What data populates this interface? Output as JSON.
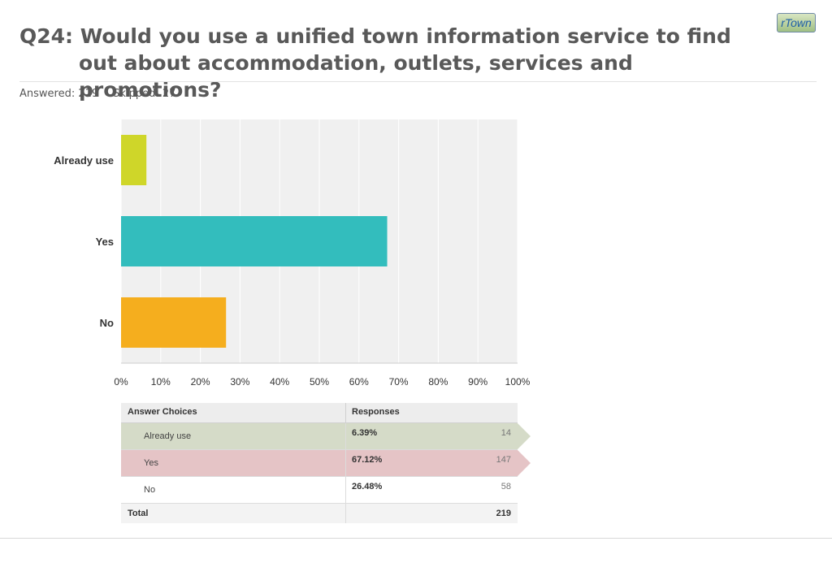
{
  "header": {
    "title": "Q24: Would you use a unified town information service to find out about accommodation, outlets, services and promotions?",
    "logo": "rTown",
    "answered": "Answered: 219",
    "skipped": "Skipped: 27"
  },
  "chart_data": {
    "type": "bar",
    "orientation": "horizontal",
    "categories": [
      "Already use",
      "Yes",
      "No"
    ],
    "values": [
      6.39,
      67.12,
      26.48
    ],
    "colors": [
      "#cfd629",
      "#33bdbd",
      "#f5ae1e"
    ],
    "xlim": [
      0,
      100
    ],
    "xticks": [
      "0%",
      "10%",
      "20%",
      "30%",
      "40%",
      "50%",
      "60%",
      "70%",
      "80%",
      "90%",
      "100%"
    ],
    "grid": true
  },
  "table": {
    "headers": [
      "Answer Choices",
      "Responses"
    ],
    "rows": [
      {
        "choice": "Already use",
        "percent": "6.39%",
        "count": "14",
        "highlight": "#d5dbc8"
      },
      {
        "choice": "Yes",
        "percent": "67.12%",
        "count": "147",
        "highlight": "#e5c4c6"
      },
      {
        "choice": "No",
        "percent": "26.48%",
        "count": "58",
        "highlight": ""
      }
    ],
    "total_label": "Total",
    "total_value": "219"
  }
}
